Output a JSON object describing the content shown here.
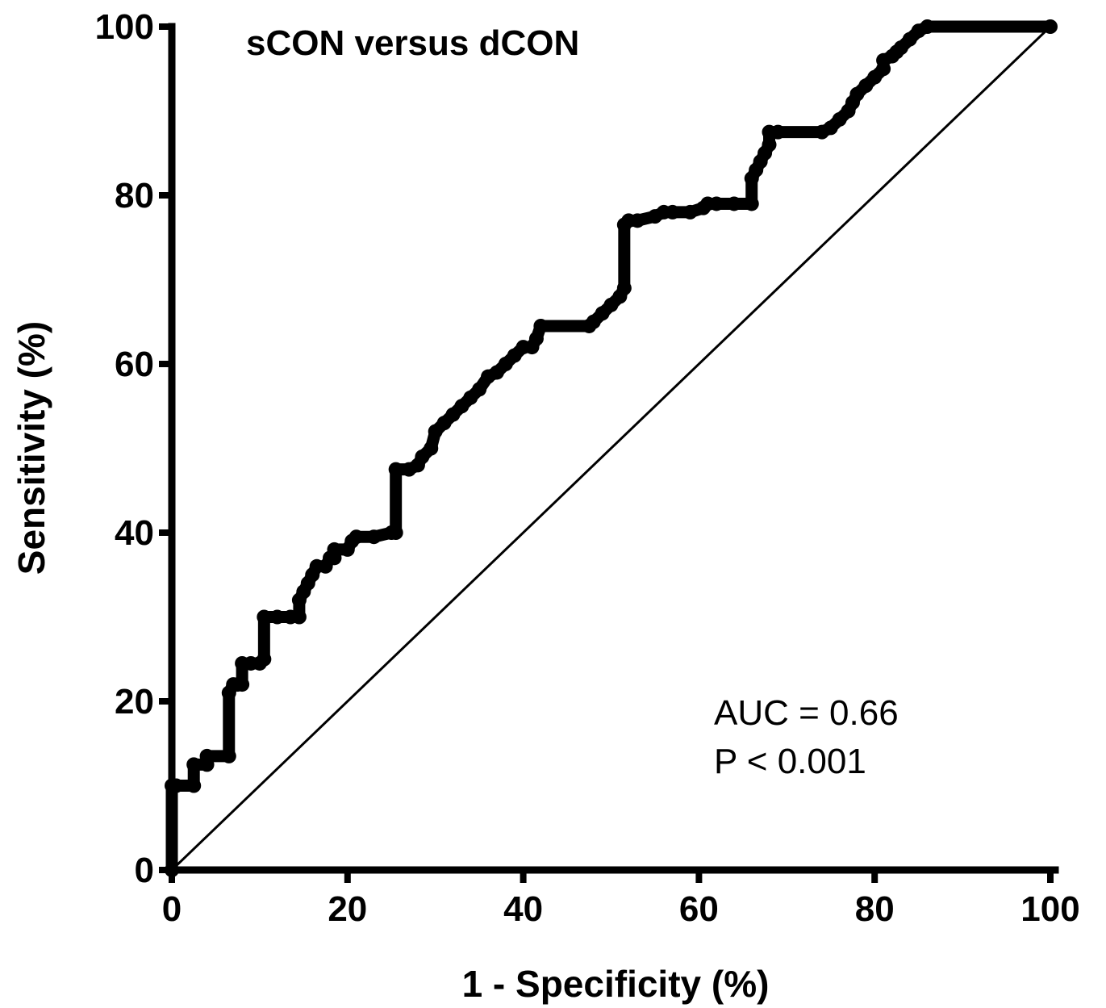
{
  "chart_data": {
    "type": "line",
    "title": "sCON versus dCON",
    "xlabel": "1 - Specificity (%)",
    "ylabel": "Sensitivity (%)",
    "xlim": [
      0,
      100
    ],
    "ylim": [
      0,
      100
    ],
    "x_ticks": [
      "0",
      "20",
      "40",
      "60",
      "80",
      "100"
    ],
    "y_ticks": [
      "0",
      "20",
      "40",
      "60",
      "80",
      "100"
    ],
    "annotations": [
      "AUC = 0.66",
      "P < 0.001"
    ],
    "grid": false,
    "series": [
      {
        "x": [
          0,
          0,
          0.5,
          2.5,
          2.5,
          4,
          4,
          6.5,
          6.5,
          7,
          7.5,
          8,
          8,
          9,
          10,
          10.5,
          10.5,
          12,
          13.5,
          14.5,
          14.5,
          15,
          15.5,
          16,
          16.5,
          17.5,
          18,
          18.5,
          18.5,
          20,
          20.5,
          21,
          23,
          25,
          25.5,
          25.5,
          27,
          28,
          28.5,
          29.5,
          30,
          31,
          32,
          33,
          34,
          35,
          36,
          37,
          38,
          39,
          40,
          41,
          41.5,
          42,
          47.5,
          48,
          49,
          50,
          51,
          51.5,
          51.5,
          52,
          53,
          55,
          56,
          57,
          59,
          60.5,
          61,
          62,
          64,
          66,
          66,
          66.5,
          67,
          67.5,
          68,
          68,
          69,
          74,
          75,
          76,
          77,
          77.5,
          78,
          79,
          80,
          81,
          81,
          82,
          82.5,
          83,
          84,
          85,
          86,
          100
        ],
        "y": [
          0,
          10,
          10,
          10,
          12.5,
          12.5,
          13.5,
          13.5,
          21,
          22,
          22,
          22,
          24.5,
          24.5,
          24.5,
          25,
          30,
          30,
          30,
          30,
          32,
          33,
          34,
          35,
          36,
          36,
          37,
          37,
          38,
          38,
          39,
          39.5,
          39.5,
          40,
          40,
          47.5,
          47.5,
          48,
          49,
          50,
          52,
          53,
          54,
          55,
          56,
          57,
          58.5,
          59,
          60,
          61,
          62,
          62,
          63,
          64.5,
          64.5,
          65,
          66,
          67,
          68,
          69,
          76.5,
          77,
          77,
          77.5,
          78,
          78,
          78,
          78.5,
          79,
          79,
          79,
          79,
          82,
          83,
          84,
          85,
          86,
          87.5,
          87.5,
          87.5,
          88,
          89,
          90,
          91,
          92,
          93,
          94,
          95,
          96,
          96.5,
          97,
          97.5,
          98.5,
          99.5,
          100,
          100
        ]
      },
      {
        "x": [
          0,
          100
        ],
        "y": [
          0,
          100
        ]
      }
    ]
  }
}
